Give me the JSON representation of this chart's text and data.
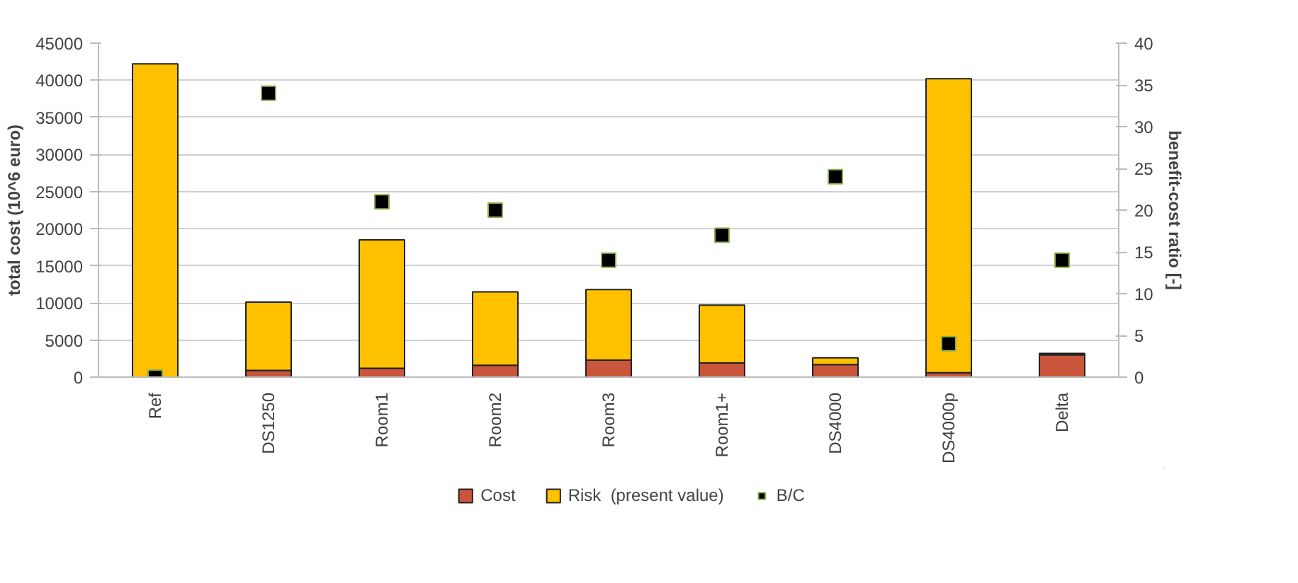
{
  "chart_data": {
    "type": "bar",
    "stacked": true,
    "categories": [
      "Ref",
      "DS1250",
      "Room1",
      "Room2",
      "Room3",
      "Room1+",
      "DS4000",
      "DS4000p",
      "Delta"
    ],
    "series": [
      {
        "name": "Cost",
        "color": "#c9553a",
        "values": [
          0,
          900,
          1200,
          1600,
          2300,
          1900,
          1700,
          600,
          3000
        ]
      },
      {
        "name": "Risk  (present value)",
        "color": "#ffc000",
        "values": [
          42200,
          9200,
          17300,
          9900,
          9500,
          7800,
          900,
          39600,
          200
        ]
      },
      {
        "name": "B/C",
        "type": "scatter",
        "axis": "y2",
        "marker": "square",
        "color": "#000000",
        "values": [
          0,
          34,
          21,
          20,
          14,
          17,
          24,
          4,
          14
        ]
      }
    ],
    "ylabel": "total cost (10^6 euro)",
    "y2label": "benefit-cost ratio [-]",
    "ylim": [
      0,
      45000
    ],
    "yticks": [
      0,
      5000,
      10000,
      15000,
      20000,
      25000,
      30000,
      35000,
      40000,
      45000
    ],
    "y2lim": [
      0,
      40
    ],
    "y2ticks": [
      0,
      5,
      10,
      15,
      20,
      25,
      30,
      35,
      40
    ],
    "grid": "y",
    "legend": "bottom"
  }
}
